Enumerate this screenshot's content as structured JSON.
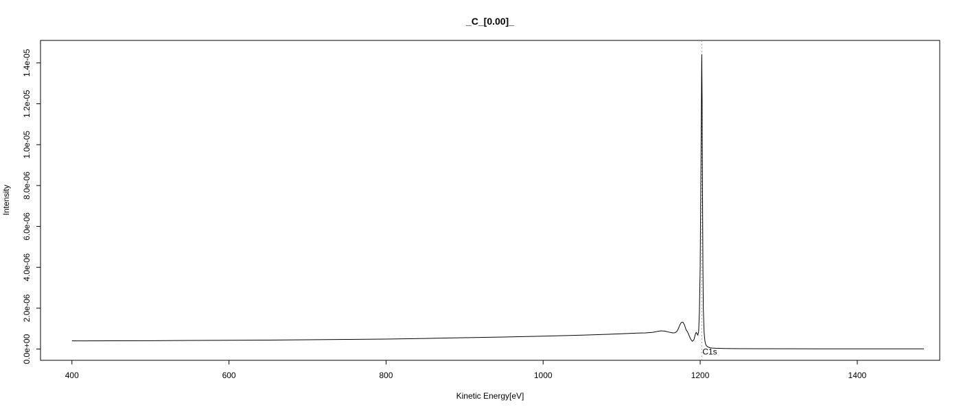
{
  "chart_data": {
    "type": "line",
    "title": "_C_[0.00]_",
    "xlabel": "Kinetic Energy[eV]",
    "ylabel": "Intensity",
    "xlim": [
      360,
      1505
    ],
    "ylim": [
      -5.5e-07,
      1.51e-05
    ],
    "x_ticks": [
      {
        "value": 400,
        "label": "400"
      },
      {
        "value": 600,
        "label": "600"
      },
      {
        "value": 800,
        "label": "800"
      },
      {
        "value": 1000,
        "label": "1000"
      },
      {
        "value": 1200,
        "label": "1200"
      },
      {
        "value": 1400,
        "label": "1400"
      }
    ],
    "y_ticks": [
      {
        "value": 0,
        "label": "0.0e+00"
      },
      {
        "value": 2e-06,
        "label": "2.0e-06"
      },
      {
        "value": 4e-06,
        "label": "4.0e-06"
      },
      {
        "value": 6e-06,
        "label": "6.0e-06"
      },
      {
        "value": 8e-06,
        "label": "8.0e-06"
      },
      {
        "value": 1e-05,
        "label": "1.0e-05"
      },
      {
        "value": 1.2e-05,
        "label": "1.2e-05"
      },
      {
        "value": 1.4e-05,
        "label": "1.4e-05"
      }
    ],
    "grid": false,
    "line_color": "#000000",
    "marker": {
      "x": 1202,
      "label": "C1s",
      "color": "#9a9aad"
    },
    "series": [
      {
        "x": [
          400,
          450,
          500,
          550,
          600,
          650,
          700,
          750,
          800,
          850,
          900,
          950,
          1000,
          1050,
          1080,
          1100,
          1120,
          1130,
          1140,
          1145,
          1150,
          1155,
          1160,
          1165,
          1168,
          1170,
          1172,
          1174,
          1176,
          1178,
          1180,
          1182,
          1184,
          1186,
          1188,
          1190,
          1192,
          1193,
          1194,
          1195,
          1196,
          1197,
          1198,
          1199,
          1200,
          1201,
          1202,
          1202.5,
          1203,
          1203.5,
          1204,
          1205,
          1206,
          1207,
          1208,
          1210,
          1212,
          1215,
          1220,
          1230,
          1250,
          1300,
          1350,
          1400,
          1450,
          1485
        ],
        "y": [
          4e-07,
          4.05e-07,
          4.1e-07,
          4.2e-07,
          4.3e-07,
          4.4e-07,
          4.55e-07,
          4.7e-07,
          4.9e-07,
          5.2e-07,
          5.55e-07,
          5.9e-07,
          6.3e-07,
          6.8e-07,
          7.2e-07,
          7.5e-07,
          7.8e-07,
          7.9e-07,
          8.2e-07,
          8.6e-07,
          8.9e-07,
          8.8e-07,
          8.3e-07,
          7.9e-07,
          8e-07,
          8.5e-07,
          9.8e-07,
          1.17e-06,
          1.3e-06,
          1.32e-06,
          1.18e-06,
          9.5e-07,
          8.3e-07,
          6.5e-07,
          4.8e-07,
          3.8e-07,
          4.5e-07,
          6e-07,
          7.5e-07,
          8.2e-07,
          7.5e-07,
          6.8e-07,
          8.5e-07,
          1.8e-06,
          4e-06,
          9e-06,
          1.44e-05,
          1.2e-05,
          7.5e-06,
          4e-06,
          2e-06,
          8e-07,
          4e-07,
          2.3e-07,
          1.6e-07,
          1e-07,
          7e-08,
          5e-08,
          4e-08,
          3e-08,
          2e-08,
          1.5e-08,
          1e-08,
          1e-08,
          1e-08,
          1e-08
        ]
      }
    ]
  }
}
